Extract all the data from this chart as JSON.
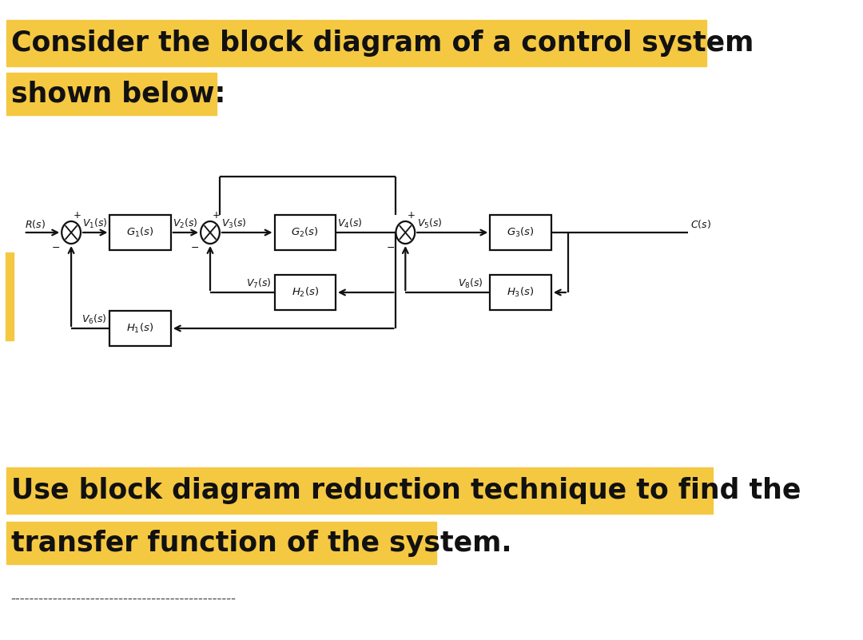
{
  "bg_color": "#ffffff",
  "yellow": "#f5c842",
  "black": "#111111",
  "title_line1": "Consider the block diagram of a control system",
  "title_line2": "shown below:",
  "bottom_line1": "Use block diagram reduction technique to find the",
  "bottom_line2": "transfer function of the system.",
  "dashes": "------------------------------------------------",
  "title_fs": 25,
  "body_fs": 25,
  "diag_fs": 9.5,
  "fig_w": 10.8,
  "fig_h": 8.01,
  "my": 510,
  "bw": 90,
  "bh": 44,
  "r": 14,
  "sx1": 105,
  "sx2": 310,
  "sx3": 598,
  "g1x": 207,
  "g2x": 450,
  "g3x": 768,
  "h2x": 450,
  "h3x": 768,
  "h1x": 207,
  "hfy2": 435,
  "hfy1": 390
}
